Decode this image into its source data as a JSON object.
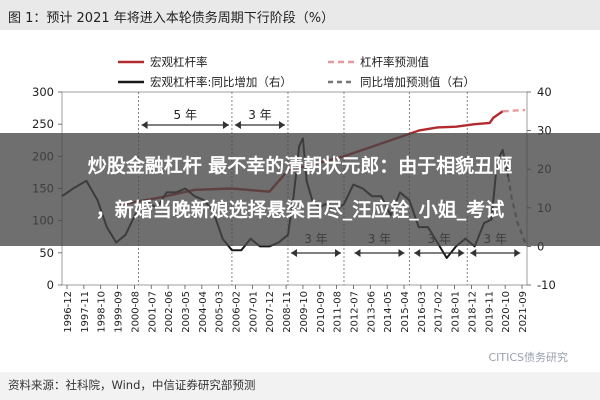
{
  "header": {
    "title": "图 1：预计 2021 年将进入本轮债务周期下行阶段（%）"
  },
  "overlay": {
    "line1": "炒股金融杠杆 最不幸的清朝状元郎：由于相貌丑陋",
    "line2": "，新婚当晚新娘选择悬梁自尽_汪应铨_小姐_考试"
  },
  "footer": {
    "source": "资料来源：社科院，Wind，中信证券研究部预测"
  },
  "watermark": "CITICS债务研究",
  "colors": {
    "leverage": "#b22b2e",
    "leverage_forecast": "#e39aa0",
    "yoy": "#1a1a1a",
    "yoy_forecast": "#777777",
    "annotation": "#333333"
  },
  "chart_data": {
    "type": "line",
    "legend": [
      {
        "label": "宏观杠杆率",
        "series": "leverage"
      },
      {
        "label": "杠杆率预测值",
        "series": "leverage_forecast"
      },
      {
        "label": "宏观杠杆率:同比增加（右）",
        "series": "yoy"
      },
      {
        "label": "同比增加预测值（右）",
        "series": "yoy_forecast"
      }
    ],
    "x_ticks": [
      "1996-12",
      "1997-11",
      "1998-10",
      "1999-09",
      "2000-08",
      "2001-07",
      "2002-06",
      "2003-05",
      "2004-04",
      "2005-03",
      "2006-02",
      "2007-01",
      "2007-12",
      "2008-11",
      "2009-10",
      "2010-09",
      "2011-08",
      "2012-07",
      "2013-06",
      "2014-05",
      "2015-04",
      "2016-03",
      "2017-02",
      "2018-01",
      "2018-12",
      "2019-11",
      "2020-10",
      "2021-09"
    ],
    "y_left": {
      "ticks": [
        0,
        50,
        100,
        150,
        200,
        250,
        300
      ],
      "min": 0,
      "max": 300
    },
    "y_right": {
      "ticks": [
        -10,
        0,
        10,
        20,
        30,
        40
      ],
      "min": -10,
      "max": 40
    },
    "annotations": [
      {
        "text": "5 年",
        "from": 2001.0,
        "to": 2006.0
      },
      {
        "text": "3 年",
        "from": 2006.0,
        "to": 2009.0
      },
      {
        "text": "3 年",
        "from": 2009.0,
        "to": 2012.0
      },
      {
        "text": "3 年",
        "from": 2012.4,
        "to": 2015.4
      },
      {
        "text": "3 年",
        "from": 2015.6,
        "to": 2018.6
      },
      {
        "text": "3 年",
        "from": 2018.6,
        "to": 2021.6
      }
    ],
    "series": {
      "leverage": {
        "axis": "left",
        "x": [
          2000.0,
          2002.0,
          2004.0,
          2006.0,
          2008.0,
          2009.0,
          2010.0,
          2012.0,
          2014.0,
          2016.0,
          2017.0,
          2018.0,
          2019.0,
          2019.8,
          2020.0,
          2020.5
        ],
        "y": [
          125,
          135,
          148,
          150,
          145,
          178,
          185,
          200,
          220,
          240,
          245,
          246,
          250,
          252,
          260,
          270
        ]
      },
      "leverage_forecast": {
        "axis": "left",
        "x": [
          2020.5,
          2021.0,
          2021.7
        ],
        "y": [
          270,
          271,
          272
        ]
      },
      "yoy": {
        "axis": "right",
        "x": [
          1996.9,
          1997.5,
          1998.2,
          1998.8,
          1999.3,
          1999.8,
          2000.3,
          2000.8,
          2001.3,
          2002.0,
          2002.5,
          2003.0,
          2003.5,
          2004.0,
          2004.5,
          2005.0,
          2005.5,
          2006.0,
          2006.5,
          2007.0,
          2007.5,
          2008.0,
          2008.5,
          2009.0,
          2009.3,
          2009.6,
          2009.8,
          2010.0,
          2010.3,
          2010.7,
          2011.0,
          2011.5,
          2012.0,
          2012.5,
          2013.0,
          2013.5,
          2014.0,
          2014.5,
          2015.0,
          2015.5,
          2016.0,
          2016.5,
          2017.0,
          2017.5,
          2018.0,
          2018.5,
          2019.0,
          2019.5,
          2019.9,
          2020.2,
          2020.5,
          2020.8
        ],
        "y": [
          13,
          15,
          17,
          12,
          5,
          1,
          3,
          8,
          12,
          10,
          14,
          14,
          15,
          13,
          12,
          9,
          2,
          -1,
          -1,
          2,
          0,
          0,
          1,
          3,
          13,
          26,
          28,
          17,
          12,
          10,
          11,
          9,
          11,
          16,
          15,
          13,
          13,
          8,
          14,
          12,
          5,
          5,
          1,
          -3,
          0,
          2,
          0,
          6,
          7,
          22,
          25,
          18
        ]
      },
      "yoy_forecast": {
        "axis": "right",
        "x": [
          2020.8,
          2021.0,
          2021.3,
          2021.7
        ],
        "y": [
          18,
          12,
          6,
          1
        ]
      }
    }
  }
}
